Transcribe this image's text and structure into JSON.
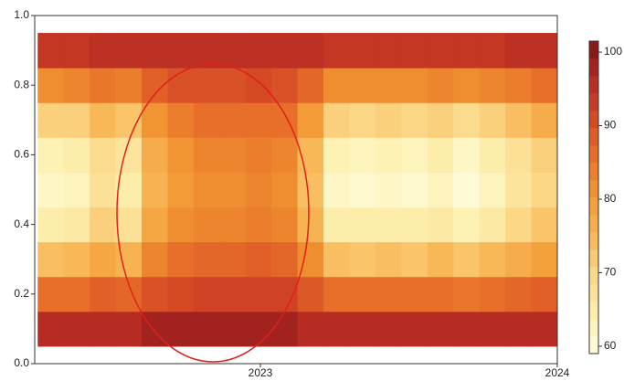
{
  "chart_data": {
    "type": "heatmap",
    "x_edges": [
      2022.25,
      2022.3375,
      2022.425,
      2022.5125,
      2022.6,
      2022.6875,
      2022.775,
      2022.8625,
      2022.95,
      2023.0375,
      2023.125,
      2023.2125,
      2023.3,
      2023.3875,
      2023.475,
      2023.5625,
      2023.65,
      2023.7375,
      2023.825,
      2023.9125,
      2024.0
    ],
    "y_edges": [
      0.05,
      0.15,
      0.25,
      0.35,
      0.45,
      0.55,
      0.65,
      0.75,
      0.85,
      0.95
    ],
    "z": [
      [
        96,
        96,
        96,
        96,
        98,
        98,
        98,
        98,
        98,
        98,
        96,
        96,
        96,
        96,
        96,
        96,
        96,
        96,
        96,
        96
      ],
      [
        86,
        86,
        88,
        87,
        90,
        91,
        92,
        92,
        92,
        92,
        89,
        86,
        86,
        86,
        86,
        86,
        85,
        86,
        87,
        88
      ],
      [
        74,
        75,
        78,
        76,
        83,
        86,
        87,
        87,
        88,
        87,
        82,
        74,
        73,
        74,
        73,
        75,
        73,
        75,
        77,
        79
      ],
      [
        65,
        66,
        71,
        68,
        78,
        82,
        83,
        83,
        84,
        83,
        76,
        65,
        65,
        65,
        65,
        66,
        64,
        66,
        70,
        73
      ],
      [
        62,
        63,
        68,
        65,
        76,
        80,
        82,
        82,
        83,
        82,
        74,
        62,
        61,
        62,
        61,
        63,
        60,
        63,
        67,
        70
      ],
      [
        64,
        65,
        69,
        67,
        77,
        81,
        83,
        83,
        84,
        83,
        75,
        64,
        63,
        64,
        63,
        65,
        62,
        65,
        68,
        71
      ],
      [
        71,
        71,
        75,
        73,
        81,
        84,
        86,
        86,
        86,
        86,
        80,
        71,
        70,
        71,
        70,
        71,
        69,
        71,
        74,
        77
      ],
      [
        82,
        83,
        85,
        84,
        88,
        90,
        90,
        90,
        91,
        90,
        87,
        82,
        82,
        82,
        82,
        83,
        82,
        83,
        84,
        86
      ],
      [
        94,
        94,
        95,
        95,
        95,
        95,
        95,
        95,
        95,
        95,
        95,
        94,
        94,
        94,
        94,
        94,
        94,
        94,
        95,
        95
      ]
    ],
    "xlim": [
      2022.24,
      2024.0
    ],
    "xticks": [
      2023,
      2024
    ],
    "ylim": [
      0,
      1
    ],
    "yticks": [
      {
        "value": 0,
        "label": "0.0"
      },
      0.2,
      0.4,
      0.6,
      0.8,
      {
        "value": 1,
        "label": "1.0"
      }
    ],
    "zlim": [
      59,
      101.5
    ],
    "zticks": [
      60,
      70,
      80,
      90,
      100
    ],
    "colors": [
      "#fffde0",
      "#fdf0b0",
      "#fbd98a",
      "#f8b858",
      "#f29a35",
      "#e8722a",
      "#d64a25",
      "#b52a22",
      "#7e1418"
    ]
  }
}
